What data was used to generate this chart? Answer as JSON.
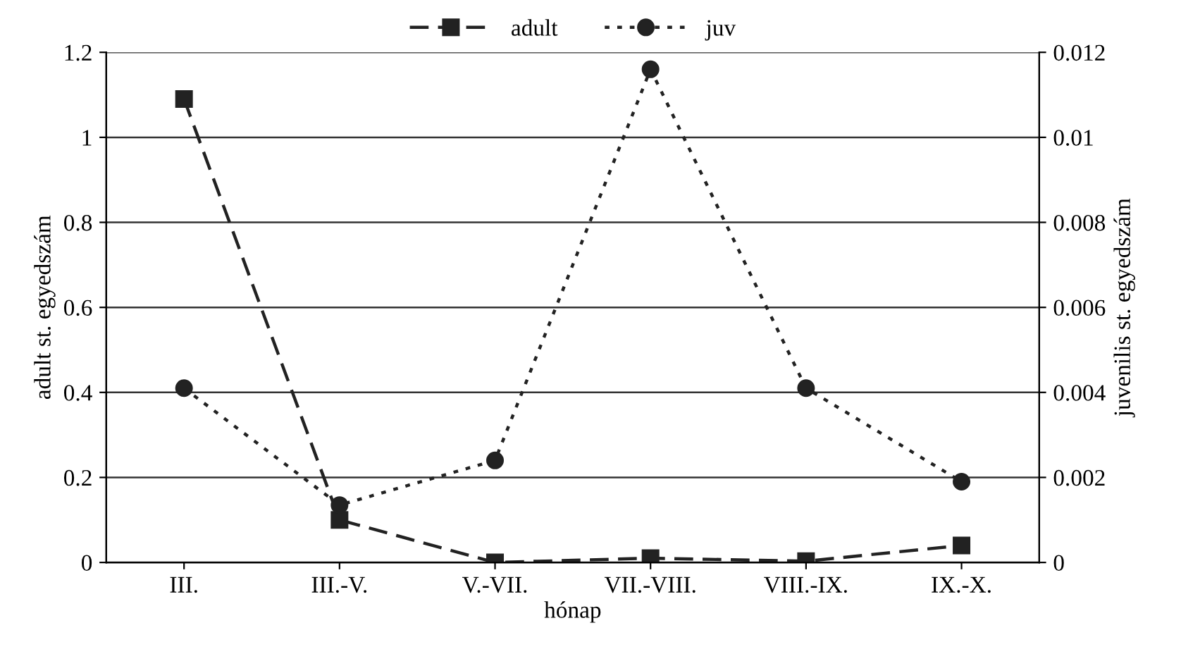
{
  "chart_data": {
    "type": "line",
    "xlabel": "hónap",
    "ylabel": "adult st. egyedszám",
    "y2label": "juvenilis st. egyedszám",
    "categories": [
      "III.",
      "III.-V.",
      "V.-VII.",
      "VII.-VIII.",
      "VIII.-IX.",
      "IX.-X."
    ],
    "series": [
      {
        "name": "adult",
        "color": "#222222",
        "marker": "square",
        "line_style": "dashed",
        "values": [
          1.09,
          0.1,
          0.0,
          0.01,
          0.003,
          0.04
        ]
      },
      {
        "name": "juv",
        "color": "#222222",
        "marker": "circle",
        "line_style": "dotted",
        "axis": "y2",
        "values": [
          0.0041,
          0.00135,
          0.0024,
          0.0116,
          0.0041,
          0.0019
        ]
      }
    ],
    "ylim": [
      0,
      1.2
    ],
    "yticks": [
      0,
      0.2,
      0.4,
      0.6,
      0.8,
      1,
      1.2
    ],
    "y2lim": [
      0,
      0.012
    ],
    "y2ticks": [
      0,
      0.002,
      0.004,
      0.006,
      0.008,
      0.01,
      0.012
    ],
    "grid": "y",
    "legend": "top"
  }
}
